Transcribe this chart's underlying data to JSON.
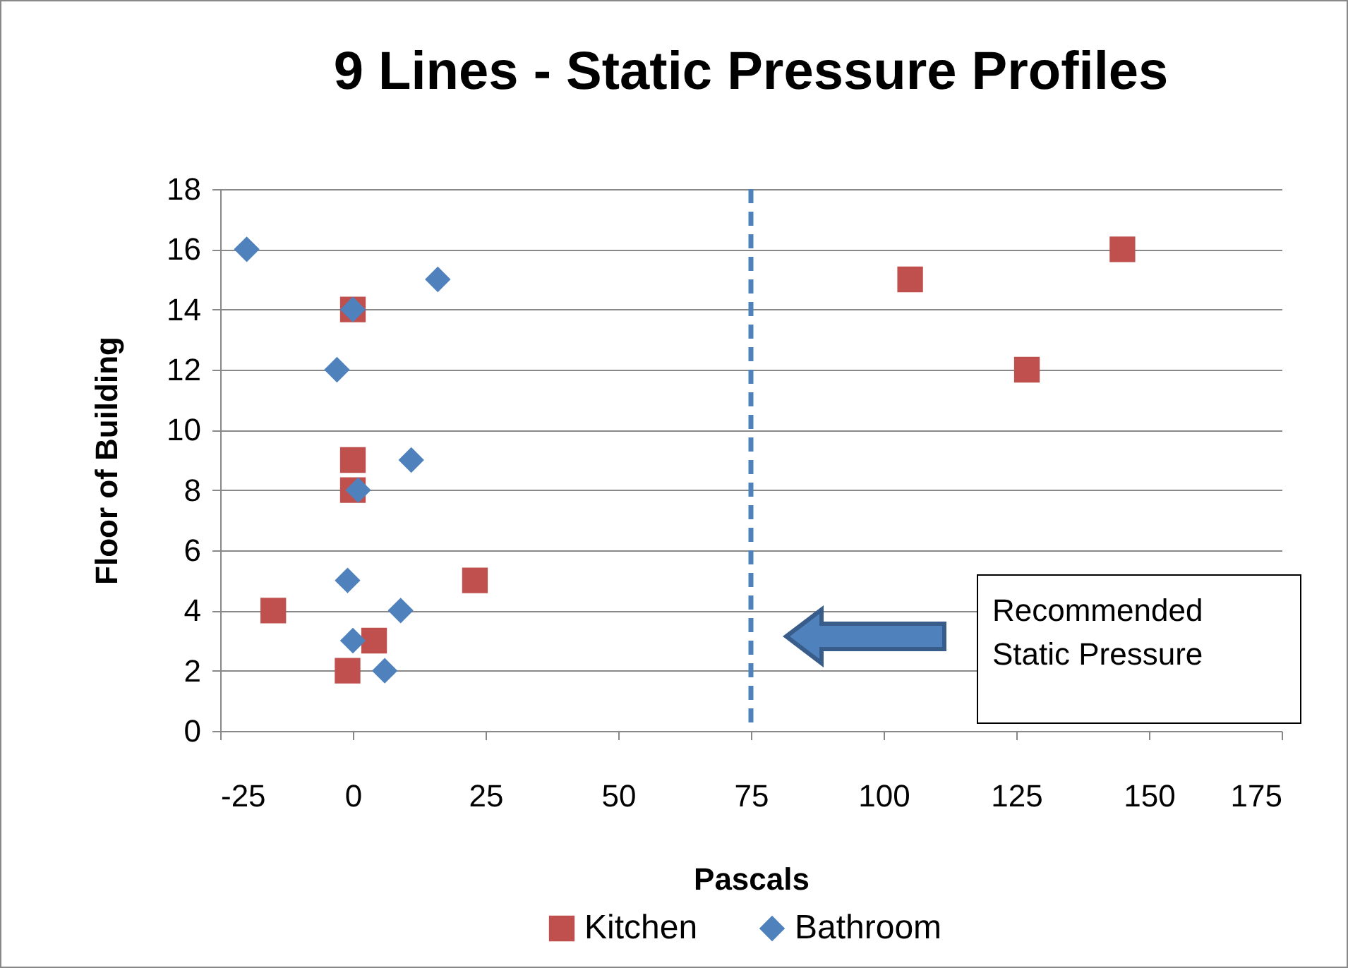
{
  "chart_data": {
    "type": "scatter",
    "title": "9 Lines -  Static Pressure Profiles",
    "xlabel": "Pascals",
    "ylabel": "Floor of Building",
    "series": [
      {
        "name": "Kitchen",
        "color": "#c0504d",
        "marker": "square",
        "x": [
          145,
          105,
          127,
          0,
          0,
          0,
          23,
          -15,
          4,
          -1
        ],
        "values": [
          16,
          15,
          12,
          14,
          9,
          8,
          5,
          4,
          3,
          2
        ]
      },
      {
        "name": "Bathroom",
        "color": "#4f81bd",
        "marker": "diamond",
        "x": [
          -20,
          16,
          0,
          -3,
          11,
          1,
          -1,
          9,
          0,
          6
        ],
        "values": [
          16,
          15,
          14,
          12,
          9,
          8,
          5,
          4,
          3,
          2
        ]
      }
    ],
    "xlim": [
      -25,
      175
    ],
    "xticks": [
      -25,
      0,
      25,
      50,
      75,
      100,
      125,
      150,
      175
    ],
    "ylim": [
      0,
      18
    ],
    "yticks": [
      0,
      2,
      4,
      6,
      8,
      10,
      12,
      14,
      16,
      18
    ],
    "grid": "y",
    "legend": "bottom",
    "ref_lines": [
      {
        "axis": "x",
        "value": 75,
        "color": "#4f81bd",
        "line_style": "dashed"
      }
    ],
    "annotations": [
      "Recommended Static Pressure"
    ]
  }
}
